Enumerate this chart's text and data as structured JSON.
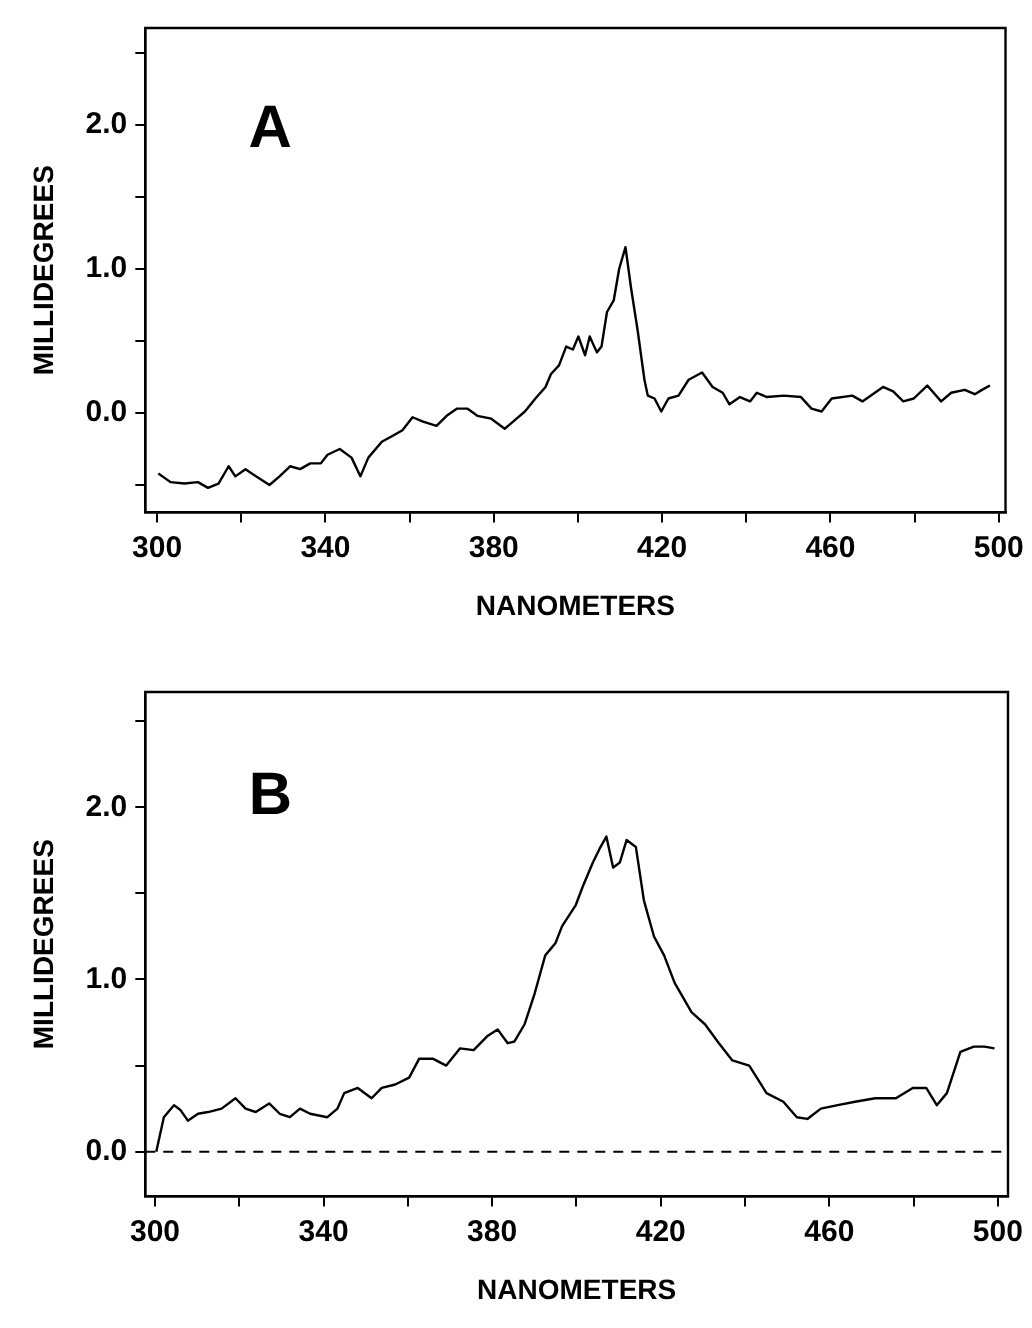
{
  "chart_data": [
    {
      "type": "line",
      "annotations": [
        "A"
      ],
      "xlabel": "NANOMETERS",
      "ylabel": "MILLIDEGREES",
      "xlim": [
        297.2,
        501.6
      ],
      "ylim": [
        -0.69,
        2.67
      ],
      "xticks": [
        300,
        {
          "value": 320,
          "label": null
        },
        340,
        {
          "value": 360,
          "label": null
        },
        380,
        {
          "value": 400,
          "label": null
        },
        420,
        {
          "value": 440,
          "label": null
        },
        460,
        {
          "value": 480,
          "label": null
        },
        500
      ],
      "yticks": [
        {
          "value": -0.5,
          "label": null
        },
        {
          "value": 0,
          "label": "0.0"
        },
        {
          "value": 0.5,
          "label": null
        },
        {
          "value": 1,
          "label": "1.0"
        },
        {
          "value": 1.5,
          "label": null
        },
        {
          "value": 2,
          "label": "2.0"
        },
        {
          "value": 2.5,
          "label": null
        }
      ],
      "grid": false,
      "legend": false,
      "marker": "none",
      "line_style": "solid",
      "series": [
        {
          "color": "#000000",
          "x": [
            300.3,
            303.2,
            306.5,
            309.7,
            312.1,
            314.6,
            317,
            318.6,
            321,
            323.5,
            326.7,
            329.1,
            331.6,
            334,
            336.4,
            338.9,
            340.5,
            343.4,
            346.2,
            348.3,
            350.2,
            353.4,
            355.9,
            358.3,
            360.7,
            363.2,
            366.4,
            368.8,
            371.3,
            373.7,
            376.1,
            379.4,
            382.6,
            385,
            387.4,
            389.9,
            392.3,
            393.6,
            395.5,
            397.2,
            398.8,
            400.1,
            401.7,
            402.8,
            404.5,
            405.6,
            406.9,
            408.5,
            409.8,
            411.3,
            412.6,
            414.2,
            415.8,
            416.6,
            418.2,
            419.8,
            421.5,
            423.9,
            426.3,
            429.5,
            432,
            434.4,
            436,
            438.5,
            440.9,
            442.5,
            444.9,
            448.9,
            453,
            455.5,
            457.9,
            460.3,
            465.2,
            467.6,
            472.5,
            474.9,
            477.3,
            479.8,
            483,
            486.3,
            488.7,
            491.9,
            494.3,
            496,
            497.9
          ],
          "values": [
            -0.42,
            -0.48,
            -0.49,
            -0.48,
            -0.52,
            -0.49,
            -0.37,
            -0.44,
            -0.39,
            -0.44,
            -0.5,
            -0.44,
            -0.37,
            -0.39,
            -0.35,
            -0.35,
            -0.29,
            -0.25,
            -0.31,
            -0.44,
            -0.31,
            -0.2,
            -0.16,
            -0.12,
            -0.03,
            -0.06,
            -0.09,
            -0.02,
            0.03,
            0.03,
            -0.02,
            -0.04,
            -0.11,
            -0.05,
            0.01,
            0.1,
            0.18,
            0.27,
            0.33,
            0.46,
            0.44,
            0.53,
            0.4,
            0.53,
            0.42,
            0.46,
            0.7,
            0.78,
            1.0,
            1.15,
            0.87,
            0.57,
            0.23,
            0.12,
            0.1,
            0.01,
            0.1,
            0.12,
            0.23,
            0.28,
            0.18,
            0.14,
            0.06,
            0.11,
            0.08,
            0.14,
            0.11,
            0.12,
            0.11,
            0.03,
            0.01,
            0.1,
            0.12,
            0.08,
            0.18,
            0.15,
            0.08,
            0.1,
            0.19,
            0.08,
            0.14,
            0.16,
            0.13,
            0.16,
            0.19
          ]
        }
      ]
    },
    {
      "type": "line",
      "annotations": [
        "B"
      ],
      "xlabel": "NANOMETERS",
      "ylabel": "MILLIDEGREES",
      "xlim": [
        297.7,
        502.4
      ],
      "ylim": [
        -0.26,
        2.67
      ],
      "xticks": [
        300,
        {
          "value": 320,
          "label": null
        },
        340,
        {
          "value": 360,
          "label": null
        },
        380,
        {
          "value": 400,
          "label": null
        },
        420,
        {
          "value": 440,
          "label": null
        },
        460,
        {
          "value": 480,
          "label": null
        },
        500
      ],
      "yticks": [
        {
          "value": 0,
          "label": "0.0"
        },
        {
          "value": 0.5,
          "label": null
        },
        {
          "value": 1,
          "label": "1.0"
        },
        {
          "value": 1.5,
          "label": null
        },
        {
          "value": 2,
          "label": "2.0"
        },
        {
          "value": 2.5,
          "label": null
        }
      ],
      "grid": false,
      "legend": false,
      "marker": "none",
      "line_style": "solid",
      "ref_lines": [
        {
          "axis": "y",
          "value": 0,
          "label": null,
          "color": "#000000",
          "line_style": "dashed"
        }
      ],
      "series": [
        {
          "color": "#000000",
          "x": [
            300.3,
            302.1,
            304.5,
            306.1,
            307.8,
            310.2,
            312.6,
            315.8,
            319.1,
            321.5,
            323.9,
            327.1,
            329.6,
            332,
            334.4,
            336.8,
            340.9,
            343.3,
            344.9,
            348.1,
            351.4,
            353.8,
            357,
            360.3,
            362.7,
            365.9,
            369.1,
            372.4,
            375.6,
            378.8,
            381.3,
            383.7,
            385.3,
            387.7,
            390.1,
            392.6,
            395,
            396.6,
            399.8,
            401.5,
            403.9,
            405.5,
            407.1,
            408.7,
            410.3,
            411.9,
            414.1,
            416,
            418.4,
            420.8,
            423.3,
            427.3,
            430.5,
            433.8,
            437,
            441,
            445.1,
            449.1,
            452.3,
            454.8,
            458,
            462,
            466.1,
            470.9,
            475.8,
            479.8,
            483,
            485.5,
            487.9,
            491.1,
            494.3,
            496.8,
            499.2
          ],
          "values": [
            0.0,
            0.2,
            0.27,
            0.24,
            0.18,
            0.22,
            0.23,
            0.25,
            0.31,
            0.25,
            0.23,
            0.28,
            0.22,
            0.2,
            0.25,
            0.22,
            0.2,
            0.25,
            0.34,
            0.37,
            0.31,
            0.37,
            0.39,
            0.43,
            0.54,
            0.54,
            0.5,
            0.6,
            0.59,
            0.67,
            0.71,
            0.63,
            0.64,
            0.74,
            0.92,
            1.14,
            1.21,
            1.31,
            1.43,
            1.54,
            1.68,
            1.76,
            1.83,
            1.65,
            1.68,
            1.81,
            1.77,
            1.46,
            1.25,
            1.14,
            0.98,
            0.81,
            0.74,
            0.63,
            0.53,
            0.5,
            0.34,
            0.29,
            0.2,
            0.19,
            0.25,
            0.27,
            0.29,
            0.31,
            0.31,
            0.37,
            0.37,
            0.27,
            0.34,
            0.58,
            0.61,
            0.61,
            0.6
          ]
        }
      ]
    }
  ]
}
